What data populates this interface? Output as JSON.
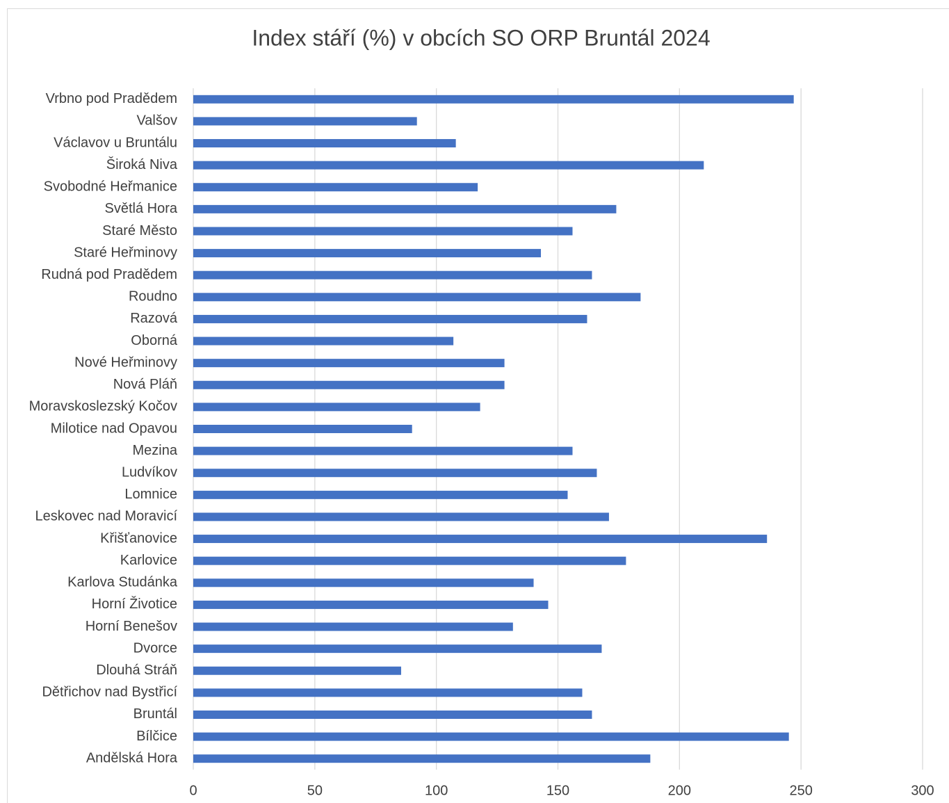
{
  "chart_data": {
    "type": "bar",
    "orientation": "horizontal",
    "title": "Index stáří (%) v obcích SO ORP Bruntál 2024",
    "categories": [
      "Vrbno pod Pradědem",
      "Valšov",
      "Václavov u Bruntálu",
      "Široká Niva",
      "Svobodné Heřmanice",
      "Světlá Hora",
      "Staré Město",
      "Staré Heřminovy",
      "Rudná pod Pradědem",
      "Roudno",
      "Razová",
      "Oborná",
      "Nové Heřminovy",
      "Nová Pláň",
      "Moravskoslezský Kočov",
      "Milotice nad Opavou",
      "Mezina",
      "Ludvíkov",
      "Lomnice",
      "Leskovec nad Moravicí",
      "Křišťanovice",
      "Karlovice",
      "Karlova Studánka",
      "Horní Životice",
      "Horní Benešov",
      "Dvorce",
      "Dlouhá Stráň",
      "Dětřichov nad Bystřicí",
      "Bruntál",
      "Bílčice",
      "Andělská Hora"
    ],
    "values": [
      247,
      92,
      108,
      210,
      117,
      174,
      156,
      143,
      164,
      184,
      162,
      107,
      128,
      128,
      118,
      90,
      156,
      166,
      154,
      171,
      236,
      178,
      140,
      146,
      131.5,
      168,
      85.5,
      160,
      164,
      245,
      188
    ],
    "color": "#4472c4",
    "xlim": [
      0,
      300
    ],
    "xticks": [
      0,
      50,
      100,
      150,
      200,
      250,
      300
    ],
    "grid": true
  }
}
